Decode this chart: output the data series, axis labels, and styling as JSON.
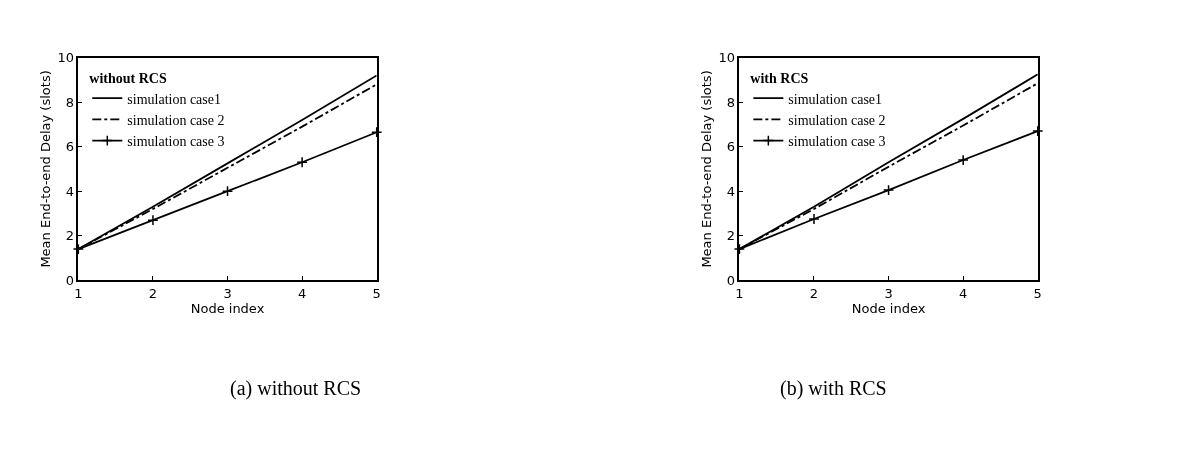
{
  "chart_data": [
    {
      "type": "line",
      "xlabel": "Node index",
      "ylabel": "Mean End-to-end Delay (slots)",
      "legend_title": "without RCS",
      "legend": "top left",
      "x": [
        1,
        2,
        3,
        4,
        5
      ],
      "xlim": [
        1,
        5
      ],
      "xticks": [
        1,
        2,
        3,
        4,
        5
      ],
      "ylim": [
        0,
        10
      ],
      "yticks": [
        0,
        2,
        4,
        6,
        8,
        10
      ],
      "series": [
        {
          "name": "simulation case1",
          "color": "#000000",
          "line_style": "solid",
          "marker": "none",
          "values": [
            1.4,
            3.3,
            5.25,
            7.2,
            9.2
          ]
        },
        {
          "name": "simulation case 2",
          "color": "#000000",
          "line_style": "dashed",
          "marker": "none",
          "values": [
            1.4,
            3.2,
            5.05,
            6.9,
            8.8
          ]
        },
        {
          "name": "simulation case 3",
          "color": "#000000",
          "line_style": "solid",
          "marker": "cross",
          "values": [
            1.4,
            2.7,
            4.0,
            5.3,
            6.65
          ]
        }
      ],
      "annotations": [
        "(a) without RCS"
      ]
    },
    {
      "type": "line",
      "xlabel": "Node index",
      "ylabel": "Mean End-to-end Delay (slots)",
      "legend_title": "with RCS",
      "legend": "top left",
      "x": [
        1,
        2,
        3,
        4,
        5
      ],
      "xlim": [
        1,
        5
      ],
      "xticks": [
        1,
        2,
        3,
        4,
        5
      ],
      "ylim": [
        0,
        10
      ],
      "yticks": [
        0,
        2,
        4,
        6,
        8,
        10
      ],
      "series": [
        {
          "name": "simulation case1",
          "color": "#000000",
          "line_style": "solid",
          "marker": "none",
          "values": [
            1.4,
            3.3,
            5.3,
            7.25,
            9.25
          ]
        },
        {
          "name": "simulation case 2",
          "color": "#000000",
          "line_style": "dashed",
          "marker": "none",
          "values": [
            1.4,
            3.2,
            5.1,
            6.95,
            8.85
          ]
        },
        {
          "name": "simulation case 3",
          "color": "#000000",
          "line_style": "solid",
          "marker": "cross",
          "values": [
            1.4,
            2.75,
            4.05,
            5.4,
            6.7
          ]
        }
      ],
      "annotations": [
        "(b) with RCS"
      ]
    }
  ]
}
